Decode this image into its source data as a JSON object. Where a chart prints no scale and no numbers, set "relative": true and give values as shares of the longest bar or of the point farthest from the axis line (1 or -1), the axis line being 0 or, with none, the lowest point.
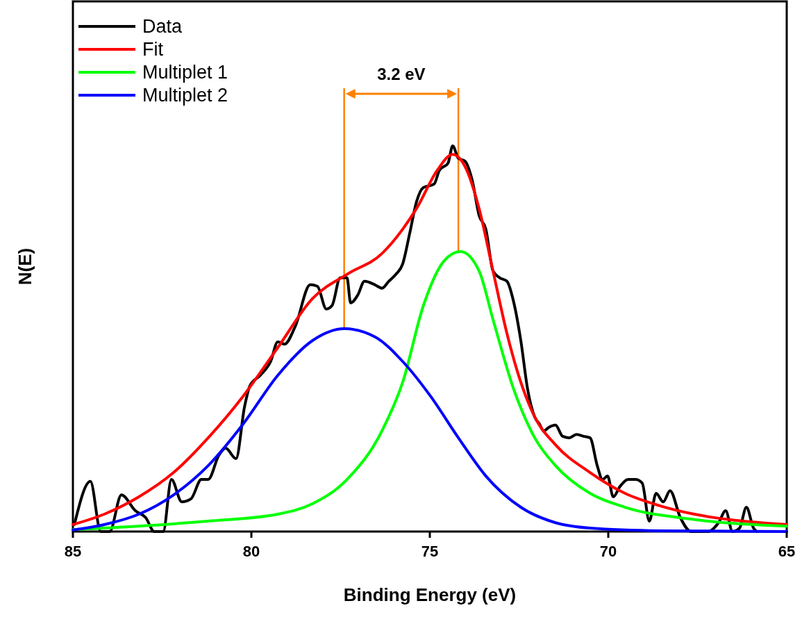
{
  "chart_data": {
    "type": "line",
    "relative": true,
    "xlabel": "Binding Energy (eV)",
    "ylabel": "N(E)",
    "xlim": [
      85,
      65
    ],
    "xticks": [
      85,
      80,
      75,
      70,
      65
    ],
    "legend": "top left",
    "grid": false,
    "line_style": "solid",
    "marker": "none",
    "tick_labels": "x",
    "annotations": [
      "3.2 eV"
    ],
    "ref_lines": [
      {
        "axis": "x",
        "value": 77.4,
        "color": "#ff8000"
      },
      {
        "axis": "x",
        "value": 74.2,
        "color": "#ff8000"
      }
    ],
    "series": [
      {
        "name": "Data",
        "color": "#000000",
        "x": [
          84.96,
          84.51,
          84.22,
          83.97,
          83.64,
          83.25,
          82.96,
          82.72,
          82.47,
          82.24,
          81.95,
          81.69,
          81.4,
          81.21,
          80.91,
          80.72,
          80.43,
          80.19,
          80.04,
          79.75,
          79.46,
          79.26,
          79.07,
          78.77,
          78.35,
          78.15,
          77.9,
          77.74,
          77.51,
          77.32,
          77.22,
          77.02,
          76.83,
          76.54,
          76.34,
          76.15,
          75.95,
          75.76,
          75.56,
          75.37,
          75.18,
          74.88,
          74.73,
          74.49,
          74.36,
          74.2,
          74.01,
          73.81,
          73.62,
          73.43,
          73.23,
          73.04,
          72.84,
          72.65,
          72.45,
          72.26,
          72.06,
          71.93,
          71.81,
          71.67,
          71.48,
          71.28,
          71.09,
          70.89,
          70.7,
          70.51,
          70.31,
          70.16,
          70.02,
          69.86,
          69.67,
          69.44,
          69.24,
          69.05,
          68.85,
          68.66,
          68.46,
          68.27,
          67.98,
          67.68,
          67.39,
          67.2,
          66.91,
          66.71,
          66.52,
          66.32,
          66.13,
          65.93,
          65.84
        ],
        "values": [
          0.018,
          0.13,
          0,
          0,
          0.095,
          0.054,
          0.036,
          0,
          0,
          0.135,
          0.077,
          0.085,
          0.135,
          0.135,
          0.198,
          0.216,
          0.189,
          0.324,
          0.378,
          0.405,
          0.441,
          0.492,
          0.486,
          0.532,
          0.64,
          0.636,
          0.577,
          0.586,
          0.658,
          0.658,
          0.593,
          0.613,
          0.649,
          0.64,
          0.631,
          0.649,
          0.667,
          0.694,
          0.775,
          0.856,
          0.892,
          0.901,
          0.937,
          0.955,
          1.0,
          0.968,
          0.96,
          0.91,
          0.82,
          0.784,
          0.676,
          0.658,
          0.649,
          0.595,
          0.495,
          0.369,
          0.297,
          0.279,
          0.261,
          0.27,
          0.276,
          0.247,
          0.243,
          0.252,
          0.247,
          0.243,
          0.171,
          0.135,
          0.144,
          0.09,
          0.117,
          0.135,
          0.135,
          0.126,
          0.027,
          0.099,
          0.077,
          0.106,
          0.036,
          0,
          0,
          0,
          0.023,
          0.054,
          0,
          0.009,
          0.063,
          0.009,
          0
        ]
      },
      {
        "name": "Fit",
        "color": "#ff0000",
        "x": [
          85,
          84.12,
          83.15,
          82.18,
          81.21,
          80.23,
          79.26,
          78.29,
          77.32,
          76.34,
          75.76,
          75.37,
          74.79,
          74.36,
          74.01,
          73.62,
          73.23,
          72.84,
          72.45,
          72.06,
          71.48,
          70.51,
          69.53,
          68.56,
          67.59,
          66.61,
          65
        ],
        "values": [
          0.018,
          0.045,
          0.09,
          0.153,
          0.243,
          0.351,
          0.477,
          0.604,
          0.667,
          0.721,
          0.784,
          0.838,
          0.937,
          0.978,
          0.946,
          0.838,
          0.676,
          0.514,
          0.387,
          0.297,
          0.225,
          0.153,
          0.099,
          0.067,
          0.045,
          0.031,
          0.018
        ]
      },
      {
        "name": "Multiplet 1",
        "color": "#00ff00",
        "x": [
          85,
          83.15,
          81.21,
          79.26,
          78.29,
          77.32,
          76.34,
          75.76,
          75.18,
          74.59,
          74.14,
          73.62,
          73.23,
          72.65,
          72.06,
          71.48,
          70.51,
          69.53,
          67.59,
          65
        ],
        "values": [
          0.005,
          0.014,
          0.027,
          0.045,
          0.072,
          0.135,
          0.261,
          0.387,
          0.586,
          0.703,
          0.726,
          0.676,
          0.55,
          0.369,
          0.243,
          0.171,
          0.099,
          0.063,
          0.031,
          0.014
        ]
      },
      {
        "name": "Multiplet 2",
        "color": "#0000ff",
        "x": [
          85,
          84.12,
          83.15,
          82.18,
          81.21,
          80.23,
          79.26,
          78.29,
          77.39,
          76.54,
          75.76,
          74.98,
          74.2,
          73.43,
          72.45,
          71.48,
          70.51,
          68.56,
          65
        ],
        "values": [
          0.004,
          0.018,
          0.045,
          0.095,
          0.171,
          0.279,
          0.405,
          0.495,
          0.526,
          0.505,
          0.441,
          0.351,
          0.243,
          0.144,
          0.063,
          0.023,
          0.009,
          0.002,
          0
        ]
      }
    ]
  }
}
